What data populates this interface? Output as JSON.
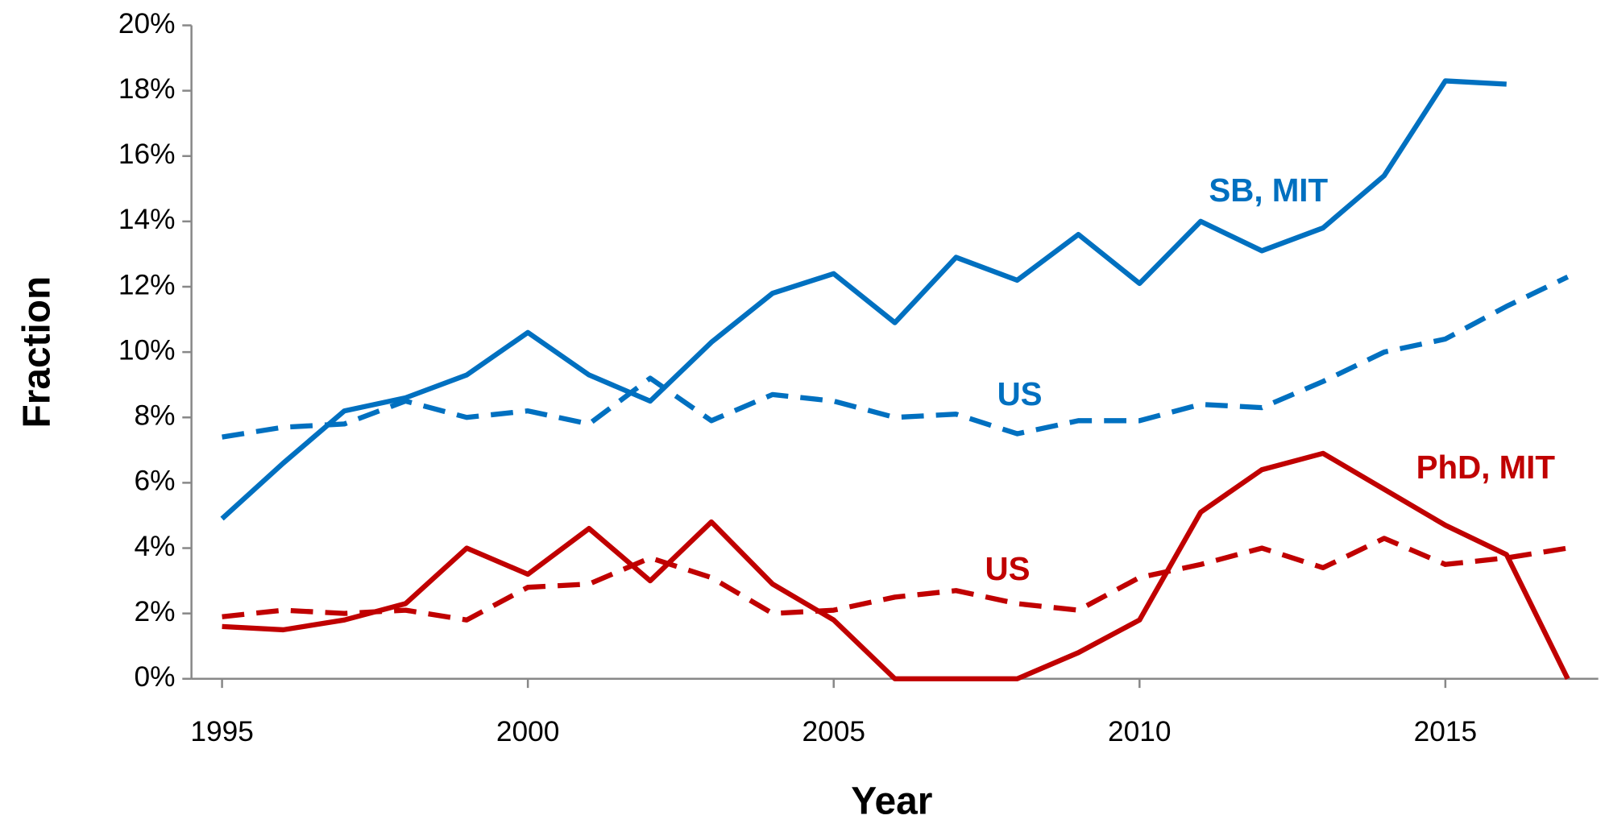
{
  "chart_data": {
    "type": "line",
    "x_label": "Year",
    "y_label": "Fraction",
    "x": [
      1995,
      1996,
      1997,
      1998,
      1999,
      2000,
      2001,
      2002,
      2003,
      2004,
      2005,
      2006,
      2007,
      2008,
      2009,
      2010,
      2011,
      2012,
      2013,
      2014,
      2015,
      2016,
      2017
    ],
    "xlim": [
      1994.5,
      2017.5
    ],
    "xticks": [
      1995,
      2000,
      2005,
      2010,
      2015
    ],
    "ylim": [
      0,
      20
    ],
    "yticks": [
      {
        "value": 0,
        "label": "0%"
      },
      {
        "value": 2,
        "label": "2%"
      },
      {
        "value": 4,
        "label": "4%"
      },
      {
        "value": 6,
        "label": "6%"
      },
      {
        "value": 8,
        "label": "8%"
      },
      {
        "value": 10,
        "label": "10%"
      },
      {
        "value": 12,
        "label": "12%"
      },
      {
        "value": 14,
        "label": "14%"
      },
      {
        "value": 16,
        "label": "16%"
      },
      {
        "value": 18,
        "label": "18%"
      },
      {
        "value": 20,
        "label": "20%"
      }
    ],
    "series": [
      {
        "name": "SB, MIT",
        "color": "#0070c0",
        "style": "solid",
        "values": [
          4.9,
          6.6,
          8.2,
          8.6,
          9.3,
          10.6,
          9.3,
          8.5,
          10.3,
          11.8,
          12.4,
          10.9,
          12.9,
          12.2,
          13.6,
          12.1,
          14.0,
          13.1,
          13.8,
          15.4,
          18.3,
          18.2,
          null
        ]
      },
      {
        "name": "US",
        "color": "#0070c0",
        "style": "dashed",
        "values": [
          7.4,
          7.7,
          7.8,
          8.5,
          8.0,
          8.2,
          7.8,
          9.2,
          7.9,
          8.7,
          8.5,
          8.0,
          8.1,
          7.5,
          7.9,
          7.9,
          8.4,
          8.3,
          9.1,
          10.0,
          10.4,
          11.4,
          12.3
        ]
      },
      {
        "name": "PhD, MIT",
        "color": "#c00000",
        "style": "solid",
        "values": [
          1.6,
          1.5,
          1.8,
          2.3,
          4.0,
          3.2,
          4.6,
          3.0,
          4.8,
          2.9,
          1.8,
          0,
          0,
          0,
          0.8,
          1.8,
          5.1,
          6.4,
          6.9,
          5.8,
          4.7,
          3.8,
          0
        ]
      },
      {
        "name": "US",
        "color": "#c00000",
        "style": "dashed",
        "values": [
          1.9,
          2.1,
          2.0,
          2.1,
          1.8,
          2.8,
          2.9,
          3.7,
          3.1,
          2.0,
          2.1,
          2.5,
          2.7,
          2.3,
          2.1,
          3.1,
          3.5,
          4.0,
          3.4,
          4.3,
          3.5,
          3.7,
          4.0
        ]
      }
    ]
  }
}
